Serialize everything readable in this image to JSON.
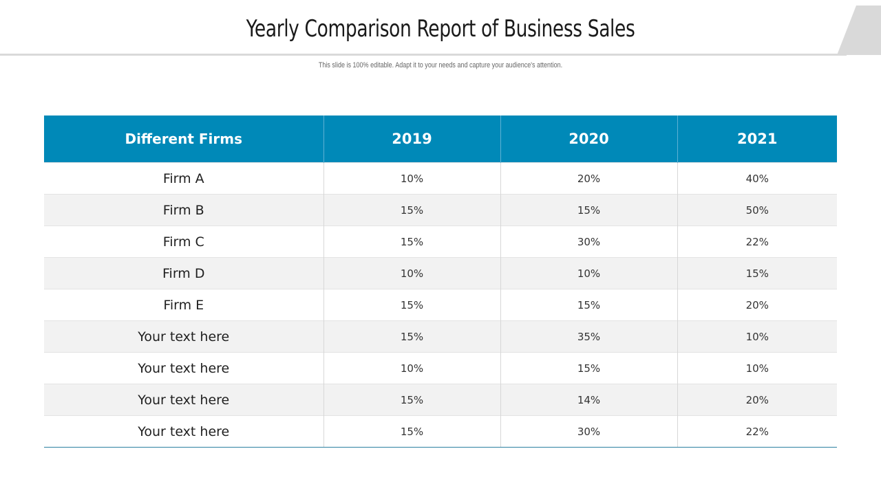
{
  "slide": {
    "title": "Yearly Comparison Report of Business Sales",
    "subtitle": "This slide is 100% editable. Adapt it to your needs and capture your audience's attention."
  },
  "table": {
    "headers": [
      "Different Firms",
      "2019",
      "2020",
      "2021"
    ],
    "rows": [
      [
        "Firm A",
        "10%",
        "20%",
        "40%"
      ],
      [
        "Firm B",
        "15%",
        "15%",
        "50%"
      ],
      [
        "Firm C",
        "15%",
        "30%",
        "22%"
      ],
      [
        "Firm D",
        "10%",
        "10%",
        "15%"
      ],
      [
        "Firm E",
        "15%",
        "15%",
        "20%"
      ],
      [
        "Your text here",
        "15%",
        "35%",
        "10%"
      ],
      [
        "Your text here",
        "10%",
        "15%",
        "10%"
      ],
      [
        "Your text here",
        "15%",
        "14%",
        "20%"
      ],
      [
        "Your text here",
        "15%",
        "30%",
        "22%"
      ]
    ]
  },
  "colors": {
    "header_background": "#0089b8",
    "header_text": "#ffffff",
    "stripe_background": "#f2f2f2",
    "accent_gray": "#d9d9d9"
  }
}
